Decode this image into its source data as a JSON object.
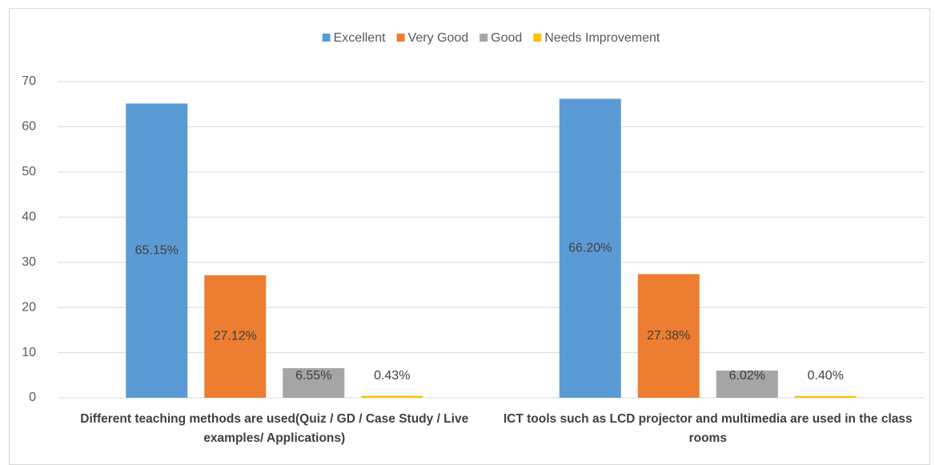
{
  "chart_data": {
    "type": "bar",
    "categories": [
      "Different teaching methods are used(Quiz / GD / Case Study / Live examples/ Applications)",
      "ICT tools such as LCD projector and multimedia are used in the class rooms"
    ],
    "series": [
      {
        "name": "Excellent",
        "color": "#5b9bd5",
        "values": [
          65.15,
          66.2
        ],
        "value_labels": [
          "65.15%",
          "66.20%"
        ]
      },
      {
        "name": "Very Good",
        "color": "#ed7d31",
        "values": [
          27.12,
          27.38
        ],
        "value_labels": [
          "27.12%",
          "27.38%"
        ]
      },
      {
        "name": "Good",
        "color": "#a5a5a5",
        "values": [
          6.55,
          6.02
        ],
        "value_labels": [
          "6.55%",
          "6.02%"
        ]
      },
      {
        "name": "Needs Improvement",
        "color": "#ffc000",
        "values": [
          0.43,
          0.4
        ],
        "value_labels": [
          "0.43%",
          "0.40%"
        ]
      }
    ],
    "ylim": [
      0,
      70
    ],
    "yticks": [
      0,
      10,
      20,
      30,
      40,
      50,
      60,
      70
    ],
    "grid": true,
    "legend": "top"
  }
}
